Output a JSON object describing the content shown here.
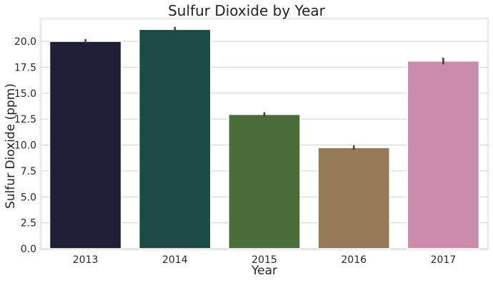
{
  "chart_data": {
    "type": "bar",
    "title": "Sulfur Dioxide by Year",
    "xlabel": "Year",
    "ylabel": "Sulfur Dioxide (ppm)",
    "categories": [
      "2013",
      "2014",
      "2015",
      "2016",
      "2017"
    ],
    "values": [
      20.0,
      21.15,
      12.95,
      9.75,
      18.1
    ],
    "error": [
      [
        19.92,
        20.08
      ],
      [
        21.04,
        21.26
      ],
      [
        12.88,
        13.02
      ],
      [
        9.68,
        9.82
      ],
      [
        17.92,
        18.28
      ]
    ],
    "colors": [
      "#1f2038",
      "#1d4c47",
      "#4a6e3a",
      "#957a57",
      "#cb8ca9"
    ],
    "error_color": "#3d3d3d",
    "ylim": [
      0,
      22.2
    ],
    "yticks": [
      "0.0",
      "2.5",
      "5.0",
      "7.5",
      "10.0",
      "12.5",
      "15.0",
      "17.5",
      "20.0"
    ],
    "grid": true,
    "legend": "none"
  }
}
